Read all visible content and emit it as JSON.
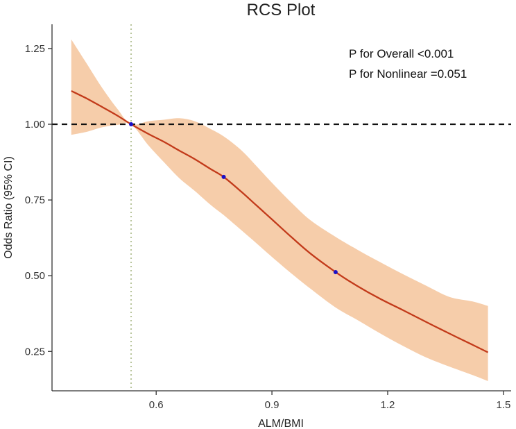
{
  "chart_data": {
    "type": "line",
    "title": "RCS Plot",
    "xlabel": "ALM/BMI",
    "ylabel": "Odds Ratio (95% CI)",
    "xlim": [
      0.33,
      1.52
    ],
    "ylim": [
      0.12,
      1.33
    ],
    "x_ticks": [
      0.6,
      0.9,
      1.2,
      1.5
    ],
    "x_tick_labels": [
      "0.6",
      "0.9",
      "1.2",
      "1.5"
    ],
    "y_ticks": [
      0.25,
      0.5,
      0.75,
      1.0,
      1.25
    ],
    "y_tick_labels": [
      "0.25",
      "0.50",
      "0.75",
      "1.00",
      "1.25"
    ],
    "reference_line_y": 1.0,
    "reference_line_x": 0.535,
    "annotations": [
      "P for Overall <0.001",
      "P for Nonlinear =0.051"
    ],
    "colors": {
      "line": "#c23a1a",
      "band": "#f6cdaa",
      "knot": "#1a10c8",
      "ref_h": "#111111",
      "ref_v": "#b7c49a"
    },
    "series": [
      {
        "name": "Odds Ratio",
        "x": [
          0.38,
          0.42,
          0.46,
          0.5,
          0.535,
          0.58,
          0.62,
          0.66,
          0.7,
          0.74,
          0.775,
          0.82,
          0.86,
          0.9,
          0.95,
          1.0,
          1.065,
          1.12,
          1.18,
          1.24,
          1.3,
          1.36,
          1.42,
          1.46
        ],
        "y": [
          1.11,
          1.085,
          1.057,
          1.028,
          1.0,
          0.968,
          0.942,
          0.913,
          0.885,
          0.853,
          0.826,
          0.778,
          0.732,
          0.686,
          0.628,
          0.573,
          0.512,
          0.467,
          0.424,
          0.386,
          0.347,
          0.309,
          0.272,
          0.247
        ]
      },
      {
        "name": "95% CI upper",
        "x": [
          0.38,
          0.42,
          0.46,
          0.5,
          0.535,
          0.58,
          0.62,
          0.66,
          0.7,
          0.74,
          0.775,
          0.82,
          0.86,
          0.9,
          0.95,
          1.0,
          1.065,
          1.12,
          1.18,
          1.24,
          1.3,
          1.36,
          1.42,
          1.46
        ],
        "y": [
          1.28,
          1.2,
          1.12,
          1.05,
          1.0,
          1.01,
          1.015,
          1.02,
          1.01,
          0.985,
          0.96,
          0.915,
          0.862,
          0.807,
          0.742,
          0.683,
          0.628,
          0.587,
          0.545,
          0.505,
          0.467,
          0.43,
          0.415,
          0.4
        ]
      },
      {
        "name": "95% CI lower",
        "x": [
          0.38,
          0.42,
          0.46,
          0.5,
          0.535,
          0.58,
          0.62,
          0.66,
          0.7,
          0.74,
          0.775,
          0.82,
          0.86,
          0.9,
          0.95,
          1.0,
          1.065,
          1.12,
          1.18,
          1.24,
          1.3,
          1.36,
          1.42,
          1.46
        ],
        "y": [
          0.965,
          0.975,
          0.99,
          0.998,
          1.0,
          0.93,
          0.875,
          0.822,
          0.78,
          0.735,
          0.7,
          0.651,
          0.607,
          0.562,
          0.508,
          0.457,
          0.395,
          0.355,
          0.31,
          0.268,
          0.23,
          0.2,
          0.172,
          0.152
        ]
      }
    ],
    "knots": [
      {
        "x": 0.535,
        "y": 1.0
      },
      {
        "x": 0.775,
        "y": 0.826
      },
      {
        "x": 1.065,
        "y": 0.512
      }
    ]
  }
}
